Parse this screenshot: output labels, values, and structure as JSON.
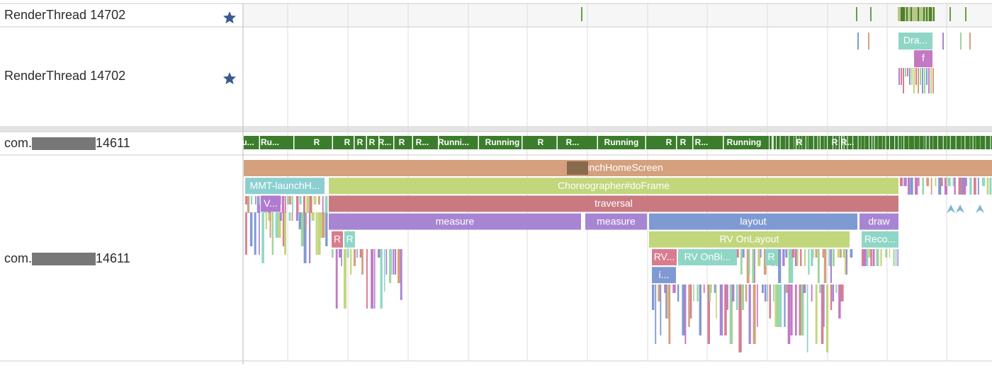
{
  "tracks": [
    {
      "name": "RenderThread 14702"
    },
    {
      "name": "RenderThread 14702"
    },
    {
      "name_prefix": "com.",
      "name_suffix": "14611"
    },
    {
      "name_prefix": "com.",
      "name_suffix": "14611"
    }
  ],
  "render_slices": [
    "Dra...",
    "f"
  ],
  "thread_states": [
    "u...",
    "Ru...",
    "R",
    "R",
    "R",
    "R",
    "R...",
    "R",
    "R...",
    "Runni...",
    "Running",
    "R",
    "R...",
    "Running",
    "R",
    "R",
    "R...",
    "Running",
    "R",
    "R",
    "R..."
  ],
  "main_slices": [
    "-launchHomeScreen",
    "MMT-launchH...",
    "Choreographer#doFrame",
    "V...",
    "traversal",
    "measure",
    "measure",
    "layout",
    "draw",
    "R",
    "R",
    "RV OnLayout",
    "Reco...",
    "RV...",
    "RV OnBi...",
    "R",
    "i..."
  ]
}
